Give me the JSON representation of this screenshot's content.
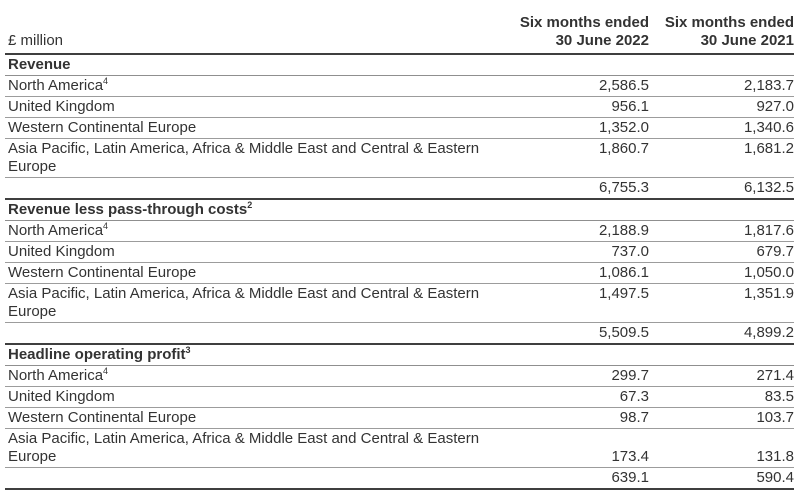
{
  "table": {
    "unit_label": "£ million",
    "columns": [
      {
        "line1": "Six months ended",
        "line2": "30 June 2022"
      },
      {
        "line1": "Six months ended",
        "line2": "30 June 2021"
      }
    ],
    "sections": [
      {
        "heading": "Revenue",
        "heading_sup": "",
        "rows": [
          {
            "label": "North America",
            "sup": "4",
            "values": [
              "2,586.5",
              "2,183.7"
            ],
            "num_valign": ""
          },
          {
            "label": "United Kingdom",
            "sup": "",
            "values": [
              "956.1",
              "927.0"
            ],
            "num_valign": ""
          },
          {
            "label": "Western Continental Europe",
            "sup": "",
            "values": [
              "1,352.0",
              "1,340.6"
            ],
            "num_valign": ""
          },
          {
            "label": "Asia Pacific, Latin America, Africa & Middle East and Central & Eastern Europe",
            "sup": "",
            "values": [
              "1,860.7",
              "1,681.2"
            ],
            "num_valign": "top"
          }
        ],
        "total": [
          "6,755.3",
          "6,132.5"
        ]
      },
      {
        "heading": "Revenue less pass-through costs",
        "heading_sup": "2",
        "rows": [
          {
            "label": "North America",
            "sup": "4",
            "values": [
              "2,188.9",
              "1,817.6"
            ],
            "num_valign": ""
          },
          {
            "label": "United Kingdom",
            "sup": "",
            "values": [
              "737.0",
              "679.7"
            ],
            "num_valign": ""
          },
          {
            "label": "Western Continental Europe",
            "sup": "",
            "values": [
              "1,086.1",
              "1,050.0"
            ],
            "num_valign": ""
          },
          {
            "label": "Asia Pacific, Latin America, Africa & Middle East and Central & Eastern Europe",
            "sup": "",
            "values": [
              "1,497.5",
              "1,351.9"
            ],
            "num_valign": "top"
          }
        ],
        "total": [
          "5,509.5",
          "4,899.2"
        ]
      },
      {
        "heading": "Headline operating profit",
        "heading_sup": "3",
        "rows": [
          {
            "label": "North America",
            "sup": "4",
            "values": [
              "299.7",
              "271.4"
            ],
            "num_valign": ""
          },
          {
            "label": "United Kingdom",
            "sup": "",
            "values": [
              "67.3",
              "83.5"
            ],
            "num_valign": ""
          },
          {
            "label": "Western Continental Europe",
            "sup": "",
            "values": [
              "98.7",
              "103.7"
            ],
            "num_valign": ""
          },
          {
            "label": "Asia Pacific, Latin America, Africa & Middle East and Central & Eastern Europe",
            "sup": "",
            "values": [
              "173.4",
              "131.8"
            ],
            "num_valign": "bottom"
          }
        ],
        "total": [
          "639.1",
          "590.4"
        ]
      }
    ]
  },
  "colors": {
    "text": "#333333",
    "rule_light": "#9c9c9c",
    "rule_heavy": "#3f3f3f",
    "background": "#ffffff"
  }
}
